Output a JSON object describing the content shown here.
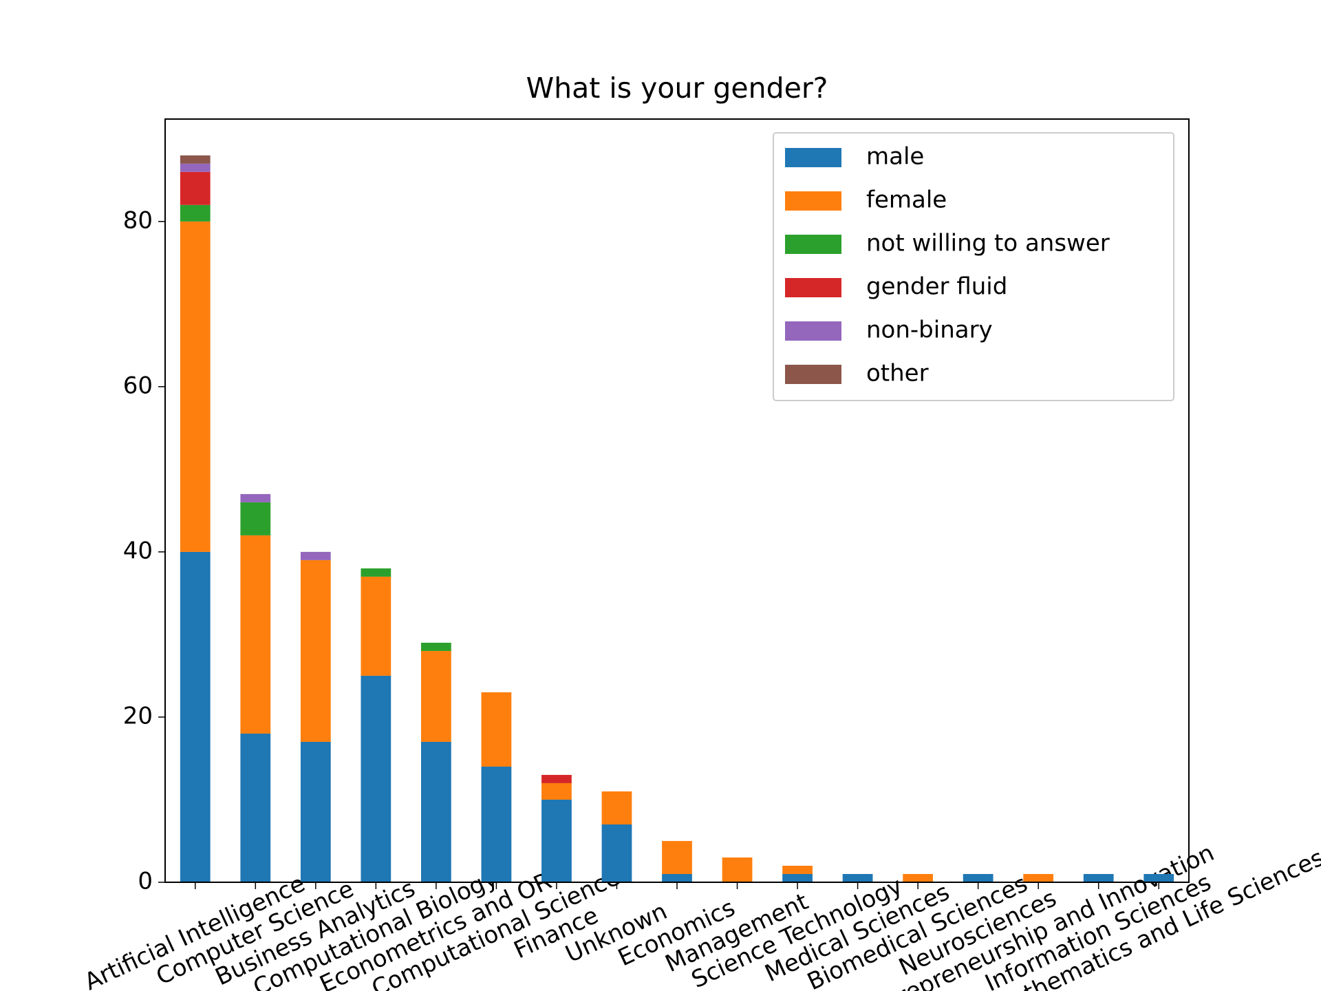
{
  "chart_data": {
    "type": "stacked_bar",
    "title": "What is your gender?",
    "categories": [
      "Artificial Intelligence",
      "Computer Science",
      "Business Analytics",
      "Computational Biology",
      "Econometrics and OR",
      "Computational Science",
      "Finance",
      "Unknown",
      "Economics",
      "Management",
      "Science Technology",
      "Medical Sciences",
      "Biomedical Sciences",
      "Neurosciences",
      "Entrepreneurship and Innovation",
      "Information Sciences",
      "Mathematics and Life Sciences"
    ],
    "series": [
      {
        "name": "male",
        "color": "#1f77b4",
        "values": [
          40,
          18,
          17,
          25,
          17,
          14,
          10,
          7,
          1,
          0,
          1,
          1,
          0,
          1,
          0,
          1,
          1
        ]
      },
      {
        "name": "female",
        "color": "#ff7f0e",
        "values": [
          40,
          24,
          22,
          12,
          11,
          9,
          2,
          4,
          4,
          3,
          1,
          0,
          1,
          0,
          1,
          0,
          0
        ]
      },
      {
        "name": "not willing to answer",
        "color": "#2ca02c",
        "values": [
          2,
          4,
          0,
          1,
          1,
          0,
          0,
          0,
          0,
          0,
          0,
          0,
          0,
          0,
          0,
          0,
          0
        ]
      },
      {
        "name": "gender fluid",
        "color": "#d62728",
        "values": [
          4,
          0,
          0,
          0,
          0,
          0,
          1,
          0,
          0,
          0,
          0,
          0,
          0,
          0,
          0,
          0,
          0
        ]
      },
      {
        "name": "non-binary",
        "color": "#9467bd",
        "values": [
          1,
          1,
          1,
          0,
          0,
          0,
          0,
          0,
          0,
          0,
          0,
          0,
          0,
          0,
          0,
          0,
          0
        ]
      },
      {
        "name": "other",
        "color": "#8c564b",
        "values": [
          1,
          0,
          0,
          0,
          0,
          0,
          0,
          0,
          0,
          0,
          0,
          0,
          0,
          0,
          0,
          0,
          0
        ]
      }
    ],
    "ylim": [
      0,
      92.4
    ],
    "yticks": [
      0,
      20,
      40,
      60,
      80
    ],
    "legend": "upper right"
  }
}
